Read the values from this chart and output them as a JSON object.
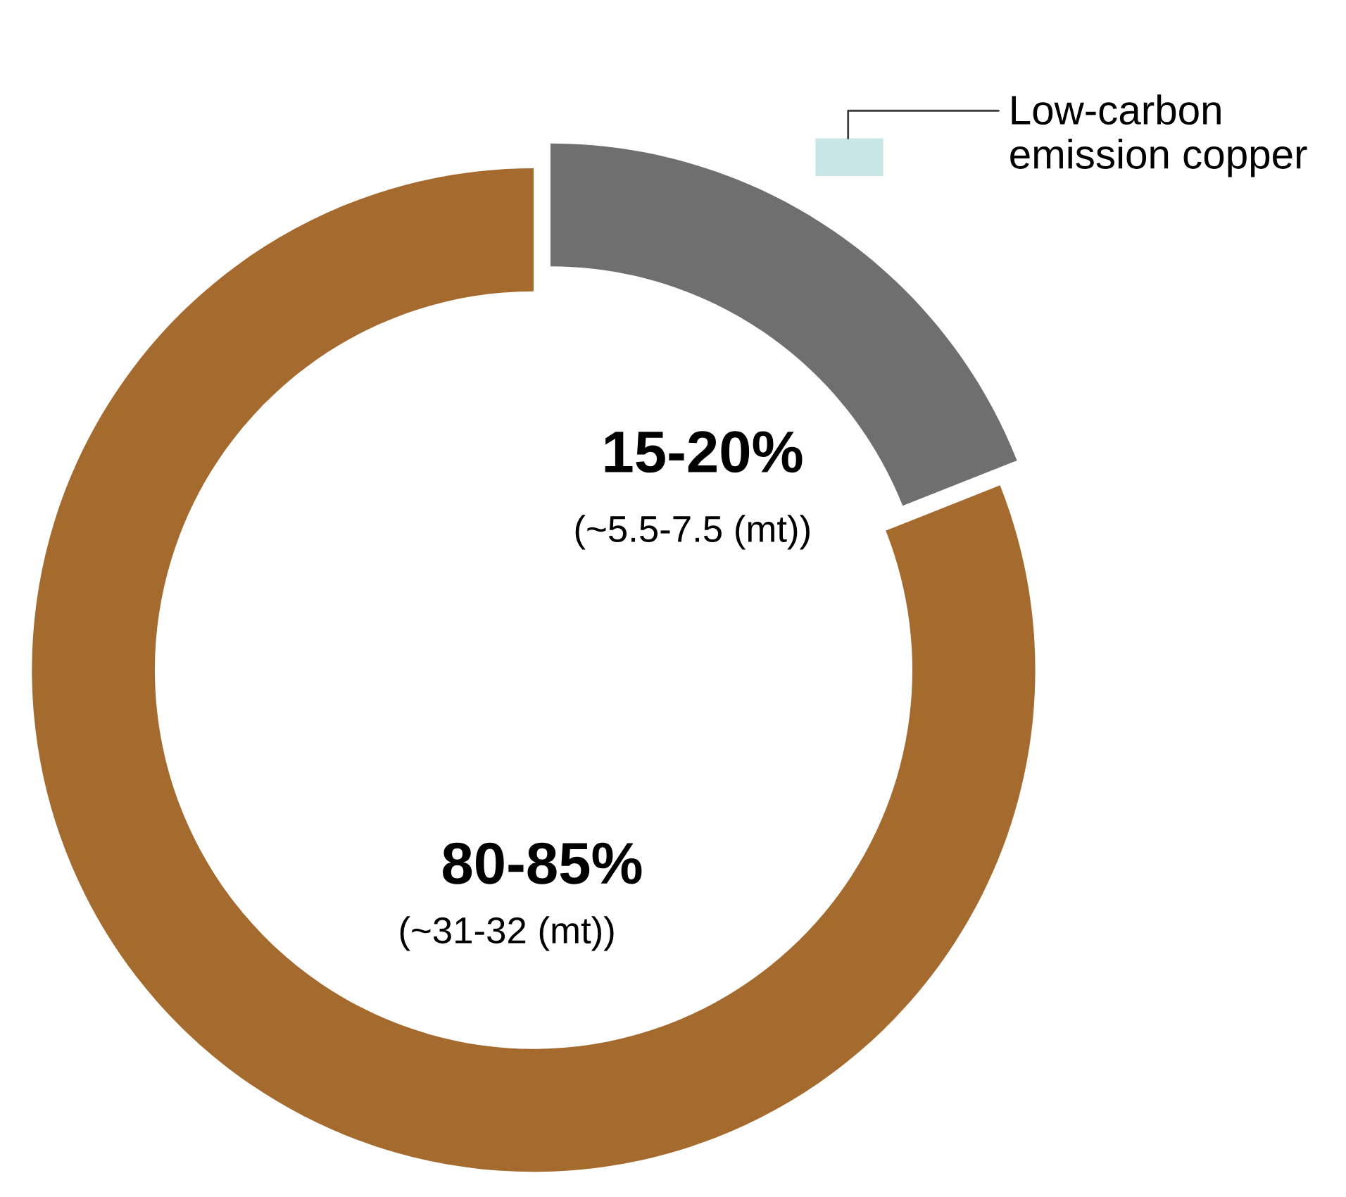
{
  "chart_data": {
    "type": "donut",
    "categories": [
      "Low-carbon emission copper",
      null
    ],
    "values": [
      19,
      81
    ],
    "colors": [
      "#6f6f6f",
      "#a56a2e"
    ],
    "annotations": [
      "15-20%",
      "(~5.5-7.5 (mt))",
      "80-85%",
      "(~31-32 (mt))"
    ]
  }
}
